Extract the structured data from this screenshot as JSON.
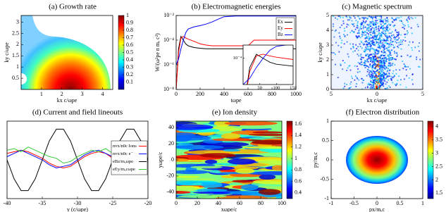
{
  "chart_data": [
    {
      "type": "heatmap",
      "title": "(a) Growth rate",
      "xlabel": "kx c/ωpe",
      "ylabel": "ky c/ωpe",
      "xlim": [
        0,
        4.5
      ],
      "xticks": [
        1,
        2,
        3,
        4
      ],
      "ylim": [
        0,
        3.3
      ],
      "yticks": [
        0.5,
        1,
        1.5,
        2,
        2.5,
        3
      ],
      "clim": [
        0,
        1
      ],
      "cticks": [
        0.1,
        0.2,
        0.3,
        0.4,
        0.5,
        0.6,
        0.7,
        0.8,
        0.9,
        1
      ]
    },
    {
      "type": "line",
      "title": "(b) Electromagnetic energies",
      "xlabel": "tωpe",
      "ylabel": "W/(ω²pe n mₑ c²)",
      "yscale": "log",
      "legend": "upper right",
      "x": [
        0,
        20,
        40,
        60,
        80,
        100,
        150,
        200,
        250,
        300,
        350,
        400,
        500,
        600,
        650,
        700,
        800,
        900,
        1000
      ],
      "series": [
        {
          "name": "Ex",
          "color": "#000000",
          "values": [
            1e-08,
            2e-05,
            0.0002,
            0.0001,
            5e-05,
            3.5e-05,
            2.5e-05,
            2.2e-05,
            2e-05,
            2e-05,
            2e-05,
            2e-05,
            2e-05,
            2e-05,
            2e-05,
            2e-05,
            2e-05,
            2e-05,
            2e-05
          ]
        },
        {
          "name": "Ey",
          "color": "#ff0000",
          "values": [
            1e-08,
            1e-05,
            0.00015,
            0.0002,
            0.00015,
            0.00012,
            8e-05,
            5e-05,
            4e-05,
            3.5e-05,
            3.5e-05,
            3.5e-05,
            3.5e-05,
            3.5e-05,
            0.0001,
            0.0001,
            0.0001,
            0.0001,
            0.0001
          ]
        },
        {
          "name": "Bz",
          "color": "#0000ff",
          "values": [
            1e-06,
            3e-06,
            2e-05,
            0.0001,
            0.0004,
            0.0008,
            0.0012,
            0.0015,
            0.002,
            0.003,
            0.005,
            0.008,
            0.009,
            0.009,
            0.009,
            0.009,
            0.009,
            0.009,
            0.009
          ]
        }
      ],
      "xlim": [
        0,
        1000
      ],
      "xticks": [
        0,
        200,
        400,
        600,
        800,
        1000
      ],
      "ylim": [
        1e-08,
        0.01
      ],
      "yticks": [
        {
          "value": 1e-08,
          "label": "10⁻⁸"
        },
        {
          "value": 1e-06,
          "label": "10⁻⁶"
        },
        {
          "value": 0.0001,
          "label": "10⁻⁴"
        },
        {
          "value": 0.01,
          "label": "10⁻²"
        }
      ],
      "inset": {
        "xlim": [
          0,
          150
        ],
        "xticks": [
          50,
          100,
          150
        ],
        "ylim": [
          1e-06,
          0.001
        ],
        "yticks": [
          {
            "value": 0.0001,
            "label": "10⁻⁴"
          }
        ]
      }
    },
    {
      "type": "heatmap",
      "title": "(c) Magnetic spectrum",
      "xlabel": "kx c/ωpe",
      "ylabel": "ky c/ωpe",
      "xlim": [
        -5,
        5
      ],
      "xticks": [
        {
          "value": -5,
          "label": "5"
        },
        0,
        5
      ],
      "ylim": [
        0,
        5
      ],
      "yticks": [
        0,
        1,
        2,
        3,
        4,
        5
      ]
    },
    {
      "type": "line",
      "title": "(d) Current and field lineouts",
      "xlabel": "y (c/ωpe)",
      "legend": "right",
      "x": [
        -40,
        -39,
        -38,
        -37,
        -36,
        -35,
        -34,
        -33,
        -32,
        -31,
        -30,
        -29,
        -28,
        -27,
        -26,
        -25,
        -24,
        -23,
        -22,
        -21,
        -20
      ],
      "series": [
        {
          "name": "nvx/n0c Ions",
          "color": "#ff0000",
          "values": [
            0.2,
            0.25,
            0.3,
            0.25,
            0.15,
            0.05,
            -0.1,
            -0.2,
            -0.25,
            -0.2,
            -0.05,
            0.1,
            0.2,
            0.25,
            0.2,
            0.05,
            -0.1,
            -0.2,
            -0.25,
            -0.15,
            0
          ]
        },
        {
          "name": "nvx/n0c e⁻",
          "color": "#0000ff",
          "values": [
            0.1,
            0.2,
            0.3,
            0.2,
            0.1,
            0,
            -0.15,
            -0.25,
            -0.2,
            -0.15,
            0,
            0.15,
            0.25,
            0.3,
            0.2,
            0.1,
            -0.05,
            -0.2,
            -0.3,
            -0.2,
            -0.05
          ]
        },
        {
          "name": "eBz/mₑωpe",
          "color": "#000000",
          "values": [
            0,
            -0.588,
            -0.951,
            -0.951,
            -0.588,
            0,
            0.588,
            0.951,
            0.951,
            0.588,
            0,
            -0.588,
            -0.951,
            -0.951,
            -0.588,
            0,
            0.588,
            0.951,
            0.951,
            0.588,
            0
          ]
        },
        {
          "name": "eEy/mₑcωpe",
          "color": "#33cc33",
          "values": [
            0.3,
            0.35,
            0.25,
            0.4,
            0.3,
            0.2,
            0.1,
            0.05,
            -0.1,
            -0.05,
            0.1,
            0.2,
            0.3,
            0.25,
            0.35,
            0.2,
            0.15,
            0.1,
            0.05,
            0.15,
            0.2
          ]
        }
      ],
      "xlim": [
        -40,
        -20
      ],
      "xticks": [
        -40,
        -35,
        -30,
        -25,
        -20
      ],
      "ylim": [
        -1.2,
        1.2
      ]
    },
    {
      "type": "heatmap",
      "title": "(e) Ion density",
      "xlabel": "xωpe/c",
      "ylabel": "yωpe/c",
      "xlim": [
        0,
        100
      ],
      "xticks": [
        0,
        20,
        40,
        60,
        80,
        100
      ],
      "ylim": [
        -48,
        48
      ],
      "yticks": [
        -40,
        -20,
        0,
        20,
        40
      ],
      "clim": [
        0.3,
        1.65
      ],
      "cticks": [
        0.4,
        0.6,
        0.8,
        1,
        1.2,
        1.4,
        1.6
      ]
    },
    {
      "type": "heatmap",
      "title": "(f) Electron distribution",
      "xlabel": "px/mₑc",
      "ylabel": "py/mₑc",
      "xlim": [
        -1,
        1
      ],
      "xticks": [
        -1,
        -0.5,
        0,
        0.5,
        1
      ],
      "ylim": [
        -1,
        1
      ],
      "yticks": [
        -1,
        -0.5,
        0,
        0.5,
        1
      ],
      "clim": [
        1.3,
        4.2
      ],
      "cticks": [
        1.5,
        2,
        2.5,
        3,
        3.5,
        4
      ]
    }
  ]
}
